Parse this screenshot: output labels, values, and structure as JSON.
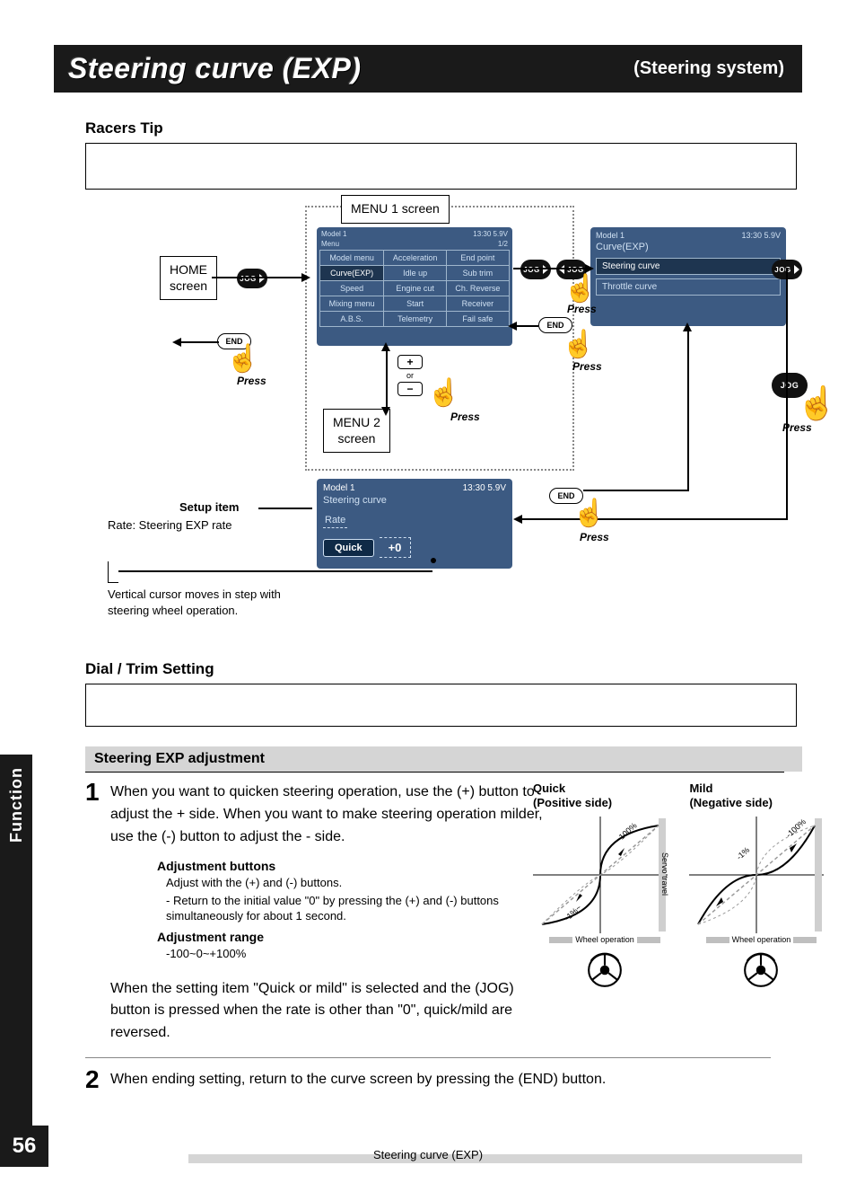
{
  "title": {
    "main": "Steering curve (EXP)",
    "sub": "(Steering system)"
  },
  "racers_tip_heading": "Racers Tip",
  "nav": {
    "home_label": "HOME\nscreen",
    "menu1_label": "MENU 1 screen",
    "menu2_label": "MENU 2\nscreen",
    "jog_text": "JOG",
    "end_text": "END",
    "press_text": "Press",
    "or_text": "or",
    "setup_item_label": "Setup item",
    "setup_item_value": "Rate: Steering EXP rate",
    "vcursor_text": "Vertical cursor moves in step with steering wheel operation."
  },
  "lcd_menu1": {
    "top_left": "Model 1",
    "top_right": "13:30 5.9V",
    "sub_left": "Menu",
    "sub_right": "1/2",
    "cells": [
      [
        "Model menu",
        "Acceleration",
        "End point"
      ],
      [
        "Curve(EXP)",
        "Idle up",
        "Sub trim"
      ],
      [
        "Speed",
        "Engine cut",
        "Ch. Reverse"
      ],
      [
        "Mixing menu",
        "Start",
        "Receiver"
      ],
      [
        "A.B.S.",
        "Telemetry",
        "Fail safe"
      ]
    ],
    "selected": [
      1,
      0
    ]
  },
  "lcd_curve": {
    "top_left": "Model 1",
    "top_right": "13:30 5.9V",
    "sub": "Curve(EXP)",
    "items": [
      "Steering curve",
      "Throttle curve"
    ],
    "selected": 0
  },
  "lcd_steering": {
    "top_left": "Model 1",
    "top_right": "13:30 5.9V",
    "sub": "Steering curve",
    "rate_label": "Rate",
    "pill": "Quick",
    "value": "+0"
  },
  "dial_heading": "Dial / Trim Setting",
  "section_bar": "Steering EXP adjustment",
  "step1": {
    "num": "1",
    "text": "When you want to quicken steering operation, use the (+) button to adjust the + side. When you want to make steering operation milder, use the (-) button to adjust the - side.",
    "adj_buttons_hd": "Adjustment buttons",
    "adj_buttons_l1": "Adjust with the (+) and (-) buttons.",
    "adj_buttons_l2": "- Return to the initial value \"0\" by pressing the (+) and (-) buttons simultaneously for about 1 second.",
    "adj_range_hd": "Adjustment range",
    "adj_range_val": "-100~0~+100%",
    "tail": "When the setting item \"Quick or mild\" is selected and the (JOG) button is pressed when the rate is other than \"0\", quick/mild are reversed."
  },
  "step2": {
    "num": "2",
    "text": "When ending setting, return to the curve screen by pressing the (END) button."
  },
  "curves": {
    "quick_hd": "Quick",
    "quick_sub": "(Positive side)",
    "mild_hd": "Mild",
    "mild_sub": "(Negative side)",
    "servo_label": "Servo travel",
    "wheel_label": "Wheel operation",
    "pct_low": "-1%",
    "pct_low2": "-1%~",
    "pct_high": "-100%",
    "pct_high2": "~-100%",
    "quick_color": "#000000",
    "mild_color": "#000000",
    "dash_color": "#9a9a9a",
    "axis_color": "#000000"
  },
  "side_tab": "Function",
  "page_number": "56",
  "footer_label": "Steering curve (EXP)"
}
